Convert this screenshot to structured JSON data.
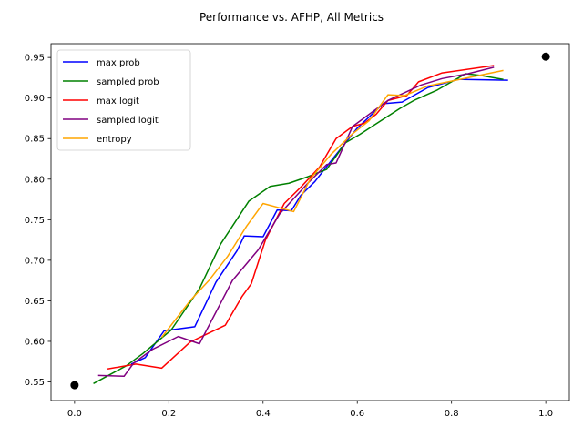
{
  "chart_data": {
    "type": "line",
    "title": "Performance vs. AFHP, All Metrics",
    "xlabel": "",
    "ylabel": "",
    "xlim": [
      -0.05,
      1.05
    ],
    "ylim": [
      0.527,
      0.967
    ],
    "xticks": [
      0.0,
      0.2,
      0.4,
      0.6,
      0.8,
      1.0
    ],
    "xtick_labels": [
      "0.0",
      "0.2",
      "0.4",
      "0.6",
      "0.8",
      "1.0"
    ],
    "yticks": [
      0.55,
      0.6,
      0.65,
      0.7,
      0.75,
      0.8,
      0.85,
      0.9,
      0.95
    ],
    "ytick_labels": [
      "0.55",
      "0.60",
      "0.65",
      "0.70",
      "0.75",
      "0.80",
      "0.85",
      "0.90",
      "0.95"
    ],
    "grid": false,
    "legend_position": "top-left",
    "series": [
      {
        "name": "max prob",
        "color": "#0000ff",
        "points": [
          [
            0.12,
            0.572
          ],
          [
            0.15,
            0.58
          ],
          [
            0.19,
            0.613
          ],
          [
            0.215,
            0.615
          ],
          [
            0.255,
            0.618
          ],
          [
            0.3,
            0.673
          ],
          [
            0.345,
            0.712
          ],
          [
            0.36,
            0.73
          ],
          [
            0.4,
            0.729
          ],
          [
            0.43,
            0.762
          ],
          [
            0.46,
            0.761
          ],
          [
            0.48,
            0.78
          ],
          [
            0.51,
            0.797
          ],
          [
            0.545,
            0.823
          ],
          [
            0.6,
            0.863
          ],
          [
            0.655,
            0.893
          ],
          [
            0.695,
            0.895
          ],
          [
            0.75,
            0.913
          ],
          [
            0.815,
            0.923
          ],
          [
            0.92,
            0.922
          ]
        ]
      },
      {
        "name": "sampled prob",
        "color": "#008000",
        "points": [
          [
            0.04,
            0.548
          ],
          [
            0.11,
            0.57
          ],
          [
            0.145,
            0.585
          ],
          [
            0.205,
            0.614
          ],
          [
            0.265,
            0.665
          ],
          [
            0.31,
            0.72
          ],
          [
            0.37,
            0.773
          ],
          [
            0.415,
            0.791
          ],
          [
            0.455,
            0.795
          ],
          [
            0.495,
            0.803
          ],
          [
            0.535,
            0.812
          ],
          [
            0.575,
            0.845
          ],
          [
            0.605,
            0.855
          ],
          [
            0.65,
            0.872
          ],
          [
            0.69,
            0.887
          ],
          [
            0.72,
            0.897
          ],
          [
            0.77,
            0.91
          ],
          [
            0.83,
            0.93
          ],
          [
            0.86,
            0.928
          ],
          [
            0.91,
            0.923
          ]
        ]
      },
      {
        "name": "max logit",
        "color": "#ff0000",
        "points": [
          [
            0.07,
            0.566
          ],
          [
            0.13,
            0.572
          ],
          [
            0.185,
            0.567
          ],
          [
            0.245,
            0.599
          ],
          [
            0.32,
            0.62
          ],
          [
            0.355,
            0.655
          ],
          [
            0.375,
            0.671
          ],
          [
            0.405,
            0.725
          ],
          [
            0.445,
            0.77
          ],
          [
            0.48,
            0.79
          ],
          [
            0.52,
            0.815
          ],
          [
            0.555,
            0.85
          ],
          [
            0.59,
            0.865
          ],
          [
            0.615,
            0.869
          ],
          [
            0.64,
            0.88
          ],
          [
            0.665,
            0.897
          ],
          [
            0.705,
            0.903
          ],
          [
            0.73,
            0.92
          ],
          [
            0.78,
            0.931
          ],
          [
            0.89,
            0.94
          ]
        ]
      },
      {
        "name": "sampled logit",
        "color": "#800080",
        "points": [
          [
            0.05,
            0.558
          ],
          [
            0.105,
            0.557
          ],
          [
            0.125,
            0.573
          ],
          [
            0.165,
            0.59
          ],
          [
            0.22,
            0.606
          ],
          [
            0.265,
            0.597
          ],
          [
            0.335,
            0.675
          ],
          [
            0.39,
            0.713
          ],
          [
            0.435,
            0.757
          ],
          [
            0.495,
            0.795
          ],
          [
            0.535,
            0.818
          ],
          [
            0.555,
            0.82
          ],
          [
            0.59,
            0.865
          ],
          [
            0.665,
            0.897
          ],
          [
            0.735,
            0.916
          ],
          [
            0.78,
            0.924
          ],
          [
            0.835,
            0.93
          ],
          [
            0.89,
            0.938
          ]
        ]
      },
      {
        "name": "entropy",
        "color": "#ffa500",
        "points": [
          [
            0.185,
            0.605
          ],
          [
            0.245,
            0.65
          ],
          [
            0.285,
            0.675
          ],
          [
            0.325,
            0.705
          ],
          [
            0.365,
            0.742
          ],
          [
            0.4,
            0.77
          ],
          [
            0.465,
            0.76
          ],
          [
            0.5,
            0.8
          ],
          [
            0.545,
            0.831
          ],
          [
            0.59,
            0.856
          ],
          [
            0.625,
            0.872
          ],
          [
            0.665,
            0.904
          ],
          [
            0.7,
            0.903
          ],
          [
            0.75,
            0.915
          ],
          [
            0.835,
            0.925
          ],
          [
            0.91,
            0.934
          ]
        ]
      }
    ],
    "markers": [
      {
        "x": 0.0,
        "y": 0.546,
        "color": "#000000"
      },
      {
        "x": 1.0,
        "y": 0.951,
        "color": "#000000"
      }
    ]
  }
}
